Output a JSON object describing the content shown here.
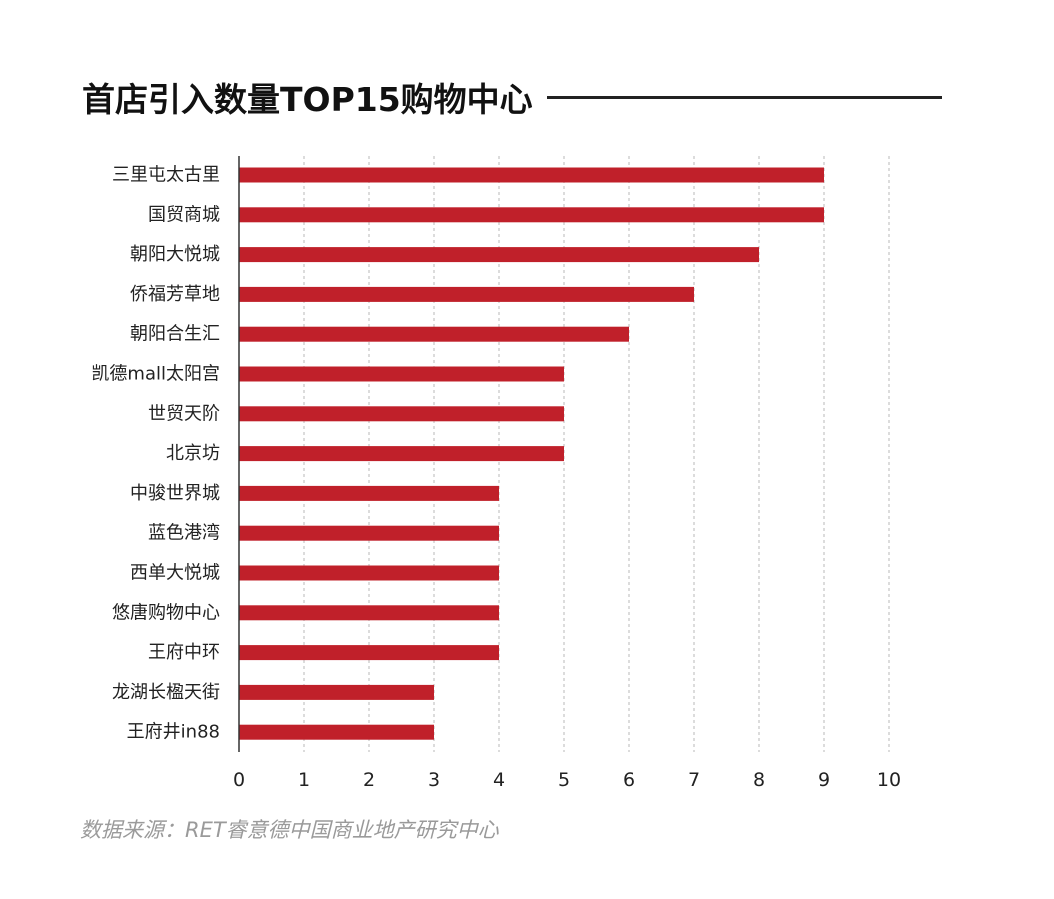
{
  "chart_data": {
    "type": "bar",
    "orientation": "horizontal",
    "title": "首店引入数量TOP15购物中心",
    "categories": [
      "三里屯太古里",
      "国贸商城",
      "朝阳大悦城",
      "侨福芳草地",
      "朝阳合生汇",
      "凯德mall太阳宫",
      "世贸天阶",
      "北京坊",
      "中骏世界城",
      "蓝色港湾",
      "西单大悦城",
      "悠唐购物中心",
      "王府中环",
      "龙湖长楹天街",
      "王府井in88"
    ],
    "values": [
      9,
      9,
      8,
      7,
      6,
      5,
      5,
      5,
      4,
      4,
      4,
      4,
      4,
      3,
      3
    ],
    "xlim": [
      0,
      10
    ],
    "xticks": [
      "0",
      "1",
      "2",
      "3",
      "4",
      "5",
      "6",
      "7",
      "8",
      "9",
      "10"
    ],
    "grid": "vertical-dashed",
    "bar_color": "#c0202a",
    "source": "数据来源：RET睿意德中国商业地产研究中心"
  }
}
